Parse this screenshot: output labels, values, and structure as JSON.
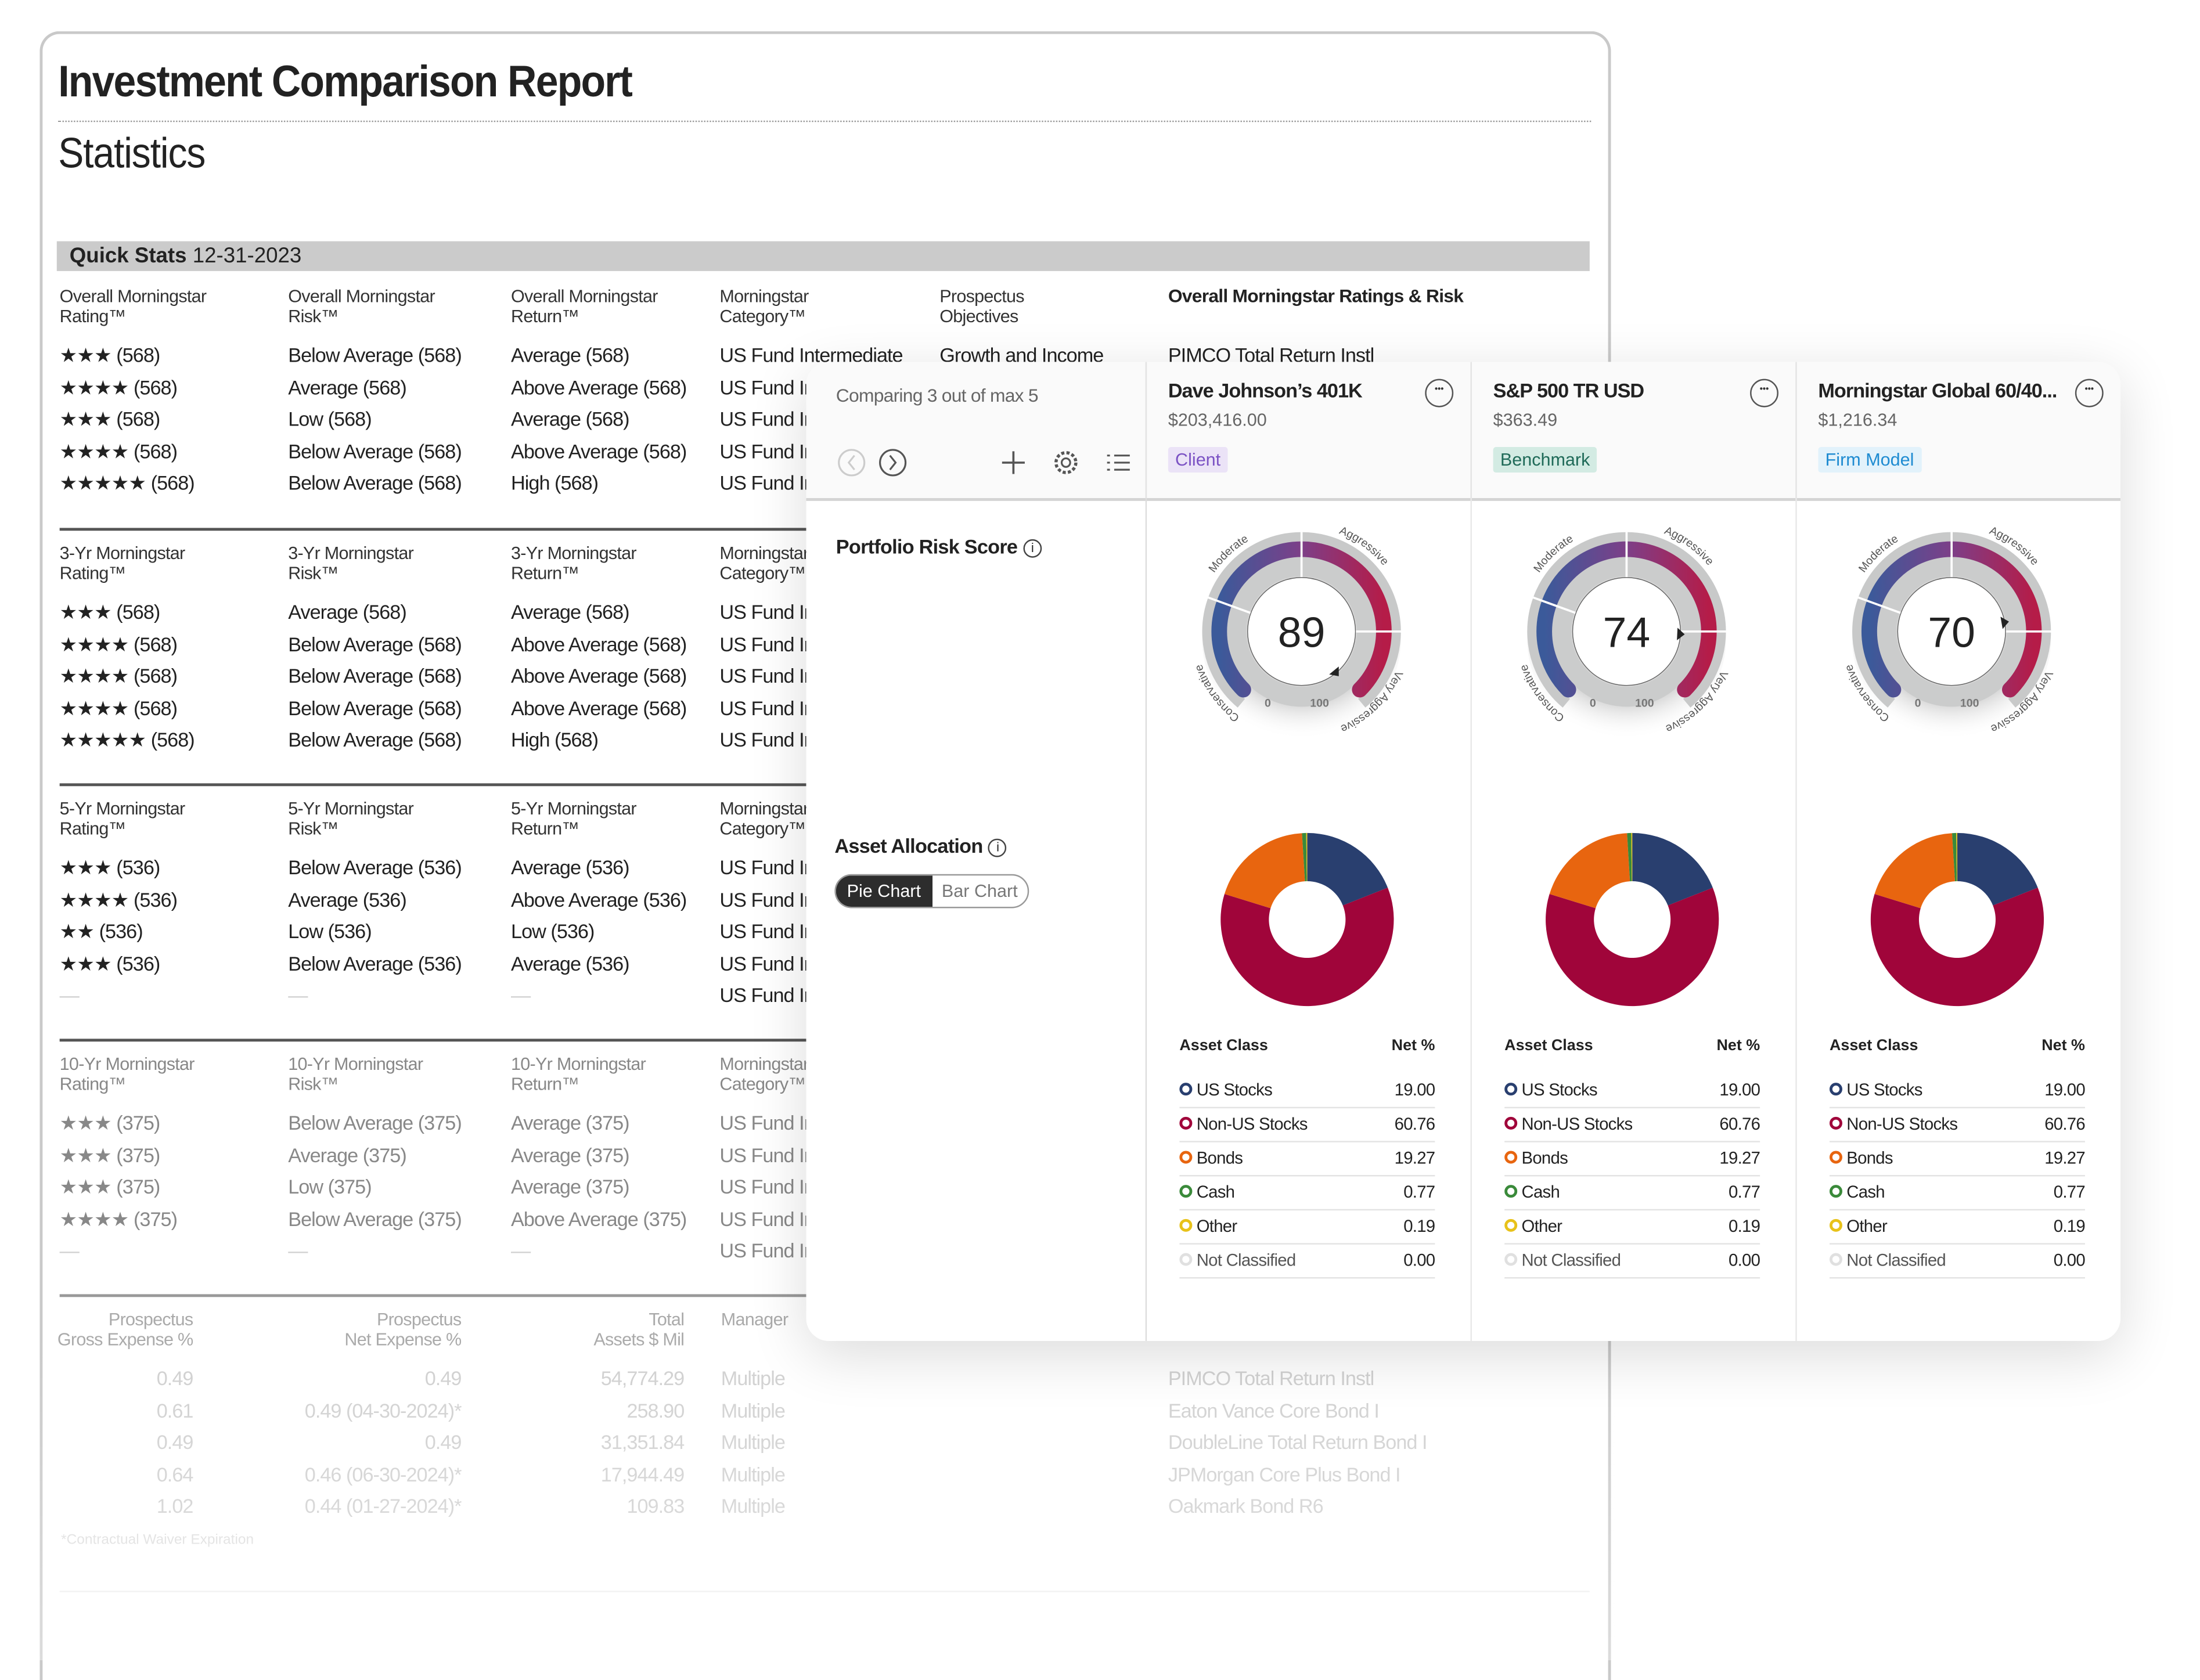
{
  "report": {
    "title": "Investment Comparison Report",
    "subtitle": "Statistics",
    "quick_stats_label": "Quick Stats",
    "quick_stats_date": "12-31-2023",
    "sections": [
      {
        "headers": [
          [
            "Overall Morningstar",
            "Rating™"
          ],
          [
            "Overall Morningstar",
            "Risk™"
          ],
          [
            "Overall Morningstar",
            "Return™"
          ],
          [
            "Morningstar",
            "Category™"
          ],
          [
            "Prospectus",
            "Objectives"
          ],
          [
            "Overall Morningstar Ratings & Risk",
            ""
          ]
        ],
        "rows": [
          [
            "★★★ (568)",
            "Below Average (568)",
            "Average (568)",
            "US Fund Intermediate",
            "Growth and Income",
            "PIMCO Total Return Instl"
          ],
          [
            "★★★★ (568)",
            "Average (568)",
            "Above Average (568)",
            "US Fund Intermediate",
            "",
            ""
          ],
          [
            "★★★ (568)",
            "Low (568)",
            "Average (568)",
            "US Fund Intermediate",
            "",
            ""
          ],
          [
            "★★★★ (568)",
            "Below Average (568)",
            "Above Average (568)",
            "US Fund Intermediate",
            "",
            ""
          ],
          [
            "★★★★★ (568)",
            "Below Average (568)",
            "High (568)",
            "US Fund Intermediate",
            "",
            ""
          ]
        ]
      },
      {
        "headers": [
          [
            "3-Yr Morningstar",
            "Rating™"
          ],
          [
            "3-Yr Morningstar",
            "Risk™"
          ],
          [
            "3-Yr Morningstar",
            "Return™"
          ],
          [
            "Morningstar",
            "Category™"
          ]
        ],
        "rows": [
          [
            "★★★ (568)",
            "Average (568)",
            "Average (568)",
            "US Fund Intermediate"
          ],
          [
            "★★★★ (568)",
            "Below Average (568)",
            "Above Average (568)",
            "US Fund Intermediate"
          ],
          [
            "★★★★ (568)",
            "Below Average (568)",
            "Above Average (568)",
            "US Fund Intermediate"
          ],
          [
            "★★★★ (568)",
            "Below Average (568)",
            "Above Average (568)",
            "US Fund Intermediate"
          ],
          [
            "★★★★★ (568)",
            "Below Average (568)",
            "High (568)",
            "US Fund Intermediate"
          ]
        ]
      },
      {
        "headers": [
          [
            "5-Yr Morningstar",
            "Rating™"
          ],
          [
            "5-Yr Morningstar",
            "Risk™"
          ],
          [
            "5-Yr Morningstar",
            "Return™"
          ],
          [
            "Morningstar",
            "Category™"
          ]
        ],
        "rows": [
          [
            "★★★ (536)",
            "Below Average (536)",
            "Average (536)",
            "US Fund Intermediate"
          ],
          [
            "★★★★ (536)",
            "Average (536)",
            "Above Average (536)",
            "US Fund Intermediate"
          ],
          [
            "★★ (536)",
            "Low (536)",
            "Low (536)",
            "US Fund Intermediate"
          ],
          [
            "★★★ (536)",
            "Below Average (536)",
            "Average (536)",
            "US Fund Intermediate"
          ],
          [
            "—",
            "—",
            "—",
            "US Fund Intermediate"
          ]
        ]
      },
      {
        "headers": [
          [
            "10-Yr Morningstar",
            "Rating™"
          ],
          [
            "10-Yr Morningstar",
            "Risk™"
          ],
          [
            "10-Yr Morningstar",
            "Return™"
          ],
          [
            "Morningstar",
            "Category™"
          ]
        ],
        "rows": [
          [
            "★★★ (375)",
            "Below Average (375)",
            "Average (375)",
            "US Fund Intermediate"
          ],
          [
            "★★★ (375)",
            "Average (375)",
            "Average (375)",
            "US Fund Intermediate"
          ],
          [
            "★★★ (375)",
            "Low (375)",
            "Average (375)",
            "US Fund Intermediate"
          ],
          [
            "★★★★ (375)",
            "Below Average (375)",
            "Above Average (375)",
            "US Fund Intermediate"
          ],
          [
            "—",
            "—",
            "—",
            "US Fund Intermediate"
          ]
        ]
      }
    ],
    "expenses": {
      "headers": [
        [
          "Prospectus",
          "Gross Expense %"
        ],
        [
          "Prospectus",
          "Net Expense %"
        ],
        [
          "Total",
          "Assets $ Mil"
        ],
        [
          "Manager",
          ""
        ]
      ],
      "rows": [
        [
          "0.49",
          "0.49",
          "54,774.29",
          "Multiple",
          "PIMCO Total Return Instl"
        ],
        [
          "0.61",
          "0.49 (04-30-2024)*",
          "258.90",
          "Multiple",
          "Eaton Vance Core Bond I"
        ],
        [
          "0.49",
          "0.49",
          "31,351.84",
          "Multiple",
          "DoubleLine Total Return Bond I"
        ],
        [
          "0.64",
          "0.46 (06-30-2024)*",
          "17,944.49",
          "Multiple",
          "JPMorgan Core Plus Bond I"
        ],
        [
          "1.02",
          "0.44 (01-27-2024)*",
          "109.83",
          "Multiple",
          "Oakmark Bond R6"
        ]
      ],
      "footnote": "*Contractual Waiver Expiration"
    }
  },
  "panel": {
    "comparing_text": "Comparing 3 out of max 5",
    "icons": [
      "chevron-left-icon",
      "chevron-right-icon",
      "plus-icon",
      "gear-icon",
      "list-icon"
    ],
    "risk_title": "Portfolio Risk Score",
    "allocation_title": "Asset Allocation",
    "toggle": {
      "pie": "Pie Chart",
      "bar": "Bar Chart",
      "selected": "Pie Chart"
    },
    "gauge_labels": {
      "conservative": "Conservative",
      "moderate": "Moderate",
      "aggressive": "Aggressive",
      "very_aggressive": "Very Aggressive",
      "min": "0",
      "max": "100"
    },
    "table_headers": {
      "class": "Asset Class",
      "net": "Net %"
    },
    "more_icon": "ellipsis-icon",
    "portfolios": [
      {
        "name": "Dave Johnson’s 401K",
        "value": "$203,416.00",
        "badge": "Client",
        "badge_bg": "#ebe3f7",
        "badge_fg": "#7b52c4",
        "risk_score": 89
      },
      {
        "name": "S&P 500 TR USD",
        "value": "$363.49",
        "badge": "Benchmark",
        "badge_bg": "#d3ebe3",
        "badge_fg": "#1f6a58",
        "risk_score": 74
      },
      {
        "name": "Morningstar Global 60/40...",
        "value": "$1,216.34",
        "badge": "Firm Model",
        "badge_bg": "#e2f2fb",
        "badge_fg": "#1e8bd1",
        "risk_score": 70
      }
    ],
    "allocation": [
      {
        "label": "US Stocks",
        "net": "19.00",
        "value": 19.0,
        "color": "#293f6f"
      },
      {
        "label": "Non-US Stocks",
        "net": "60.76",
        "value": 60.76,
        "color": "#a0053a"
      },
      {
        "label": "Bonds",
        "net": "19.27",
        "value": 19.27,
        "color": "#e8650f"
      },
      {
        "label": "Cash",
        "net": "0.77",
        "value": 0.77,
        "color": "#3a8a3a"
      },
      {
        "label": "Other",
        "net": "0.19",
        "value": 0.19,
        "color": "#e8c21a"
      },
      {
        "label": "Not Classified",
        "net": "0.00",
        "value": 0.0,
        "color": "#e0e0e0"
      }
    ]
  }
}
